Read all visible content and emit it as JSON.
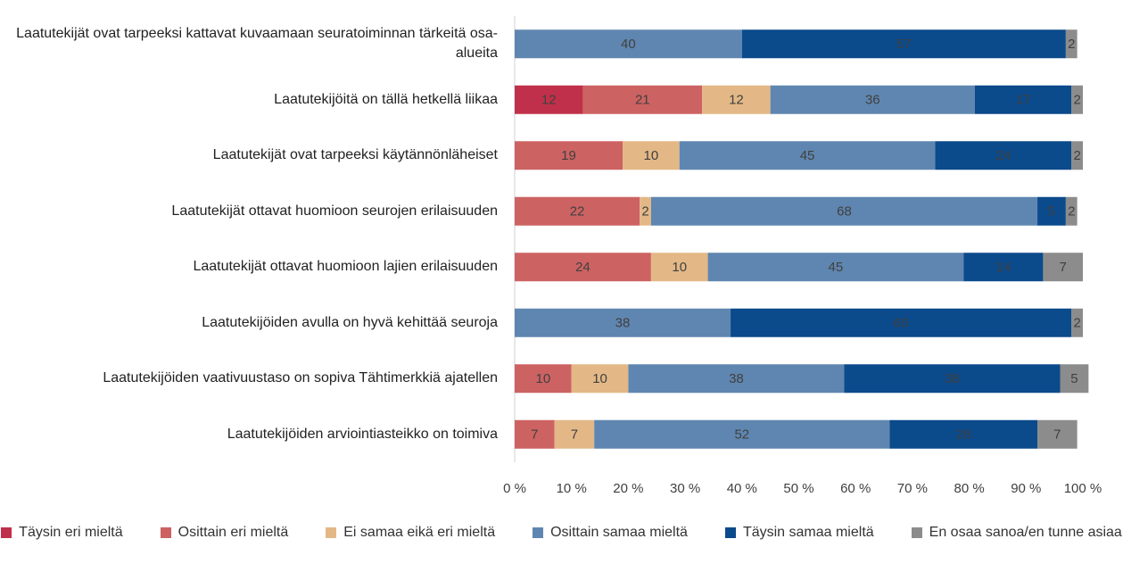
{
  "chart_data": {
    "type": "hbar-stacked",
    "categories": [
      "Laatutekijät ovat tarpeeksi kattavat kuvaamaan seuratoiminnan tärkeitä osa-alueita",
      "Laatutekijöitä on tällä hetkellä liikaa",
      "Laatutekijät ovat tarpeeksi käytännönläheiset",
      "Laatutekijät ottavat huomioon seurojen erilaisuuden",
      "Laatutekijät ottavat huomioon lajien erilaisuuden",
      "Laatutekijöiden avulla on hyvä kehittää seuroja",
      "Laatutekijöiden vaativuustaso on sopiva Tähtimerkkiä ajatellen",
      "Laatutekijöiden arviointiasteikko on toimiva"
    ],
    "series": [
      {
        "name": "Täysin eri mieltä",
        "color": "#c0304a",
        "values": [
          null,
          12,
          null,
          null,
          null,
          null,
          null,
          null
        ]
      },
      {
        "name": "Osittain eri mieltä",
        "color": "#cd6262",
        "values": [
          null,
          21,
          19,
          22,
          24,
          null,
          10,
          7
        ]
      },
      {
        "name": "Ei samaa eikä eri mieltä",
        "color": "#e3b886",
        "values": [
          null,
          12,
          10,
          2,
          10,
          null,
          10,
          7
        ]
      },
      {
        "name": "Osittain samaa mieltä",
        "color": "#5f86b0",
        "values": [
          40,
          36,
          45,
          68,
          45,
          38,
          38,
          52
        ]
      },
      {
        "name": "Täysin samaa mieltä",
        "color": "#0b4a8b",
        "values": [
          57,
          17,
          24,
          5,
          14,
          60,
          38,
          26
        ]
      },
      {
        "name": "En osaa sanoa/en tunne asiaa",
        "color": "#8c8c8c",
        "values": [
          2,
          2,
          2,
          2,
          7,
          2,
          5,
          7
        ]
      }
    ],
    "xlim": [
      0,
      100
    ],
    "xticks": [
      {
        "value": 0,
        "label": "0 %"
      },
      {
        "value": 10,
        "label": "10 %"
      },
      {
        "value": 20,
        "label": "20 %"
      },
      {
        "value": 30,
        "label": "30 %"
      },
      {
        "value": 40,
        "label": "40 %"
      },
      {
        "value": 50,
        "label": "50 %"
      },
      {
        "value": 60,
        "label": "60 %"
      },
      {
        "value": 70,
        "label": "70 %"
      },
      {
        "value": 80,
        "label": "80 %"
      },
      {
        "value": 90,
        "label": "90 %"
      },
      {
        "value": 100,
        "label": "100 %"
      }
    ],
    "grid": false,
    "legend": "bottom"
  }
}
